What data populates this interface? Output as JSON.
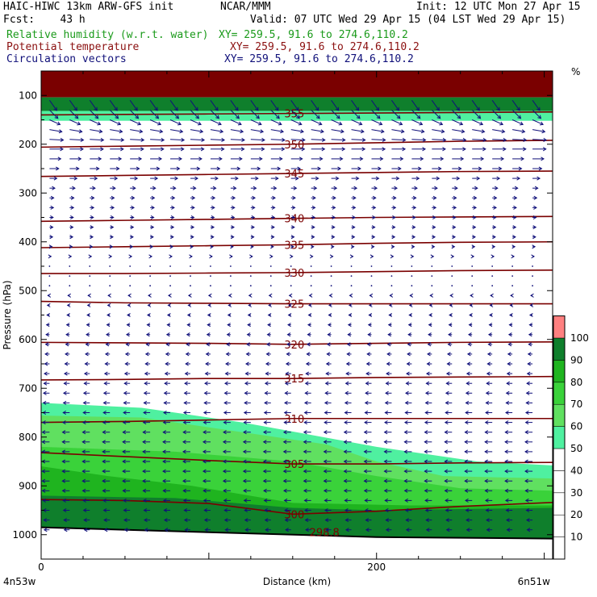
{
  "header": {
    "model": "HAIC-HIWC 13km ARW-GFS init",
    "org": "NCAR/MMM",
    "init": "Init: 12 UTC Mon 27 Apr 15",
    "fcst": "Fcst:    43 h",
    "valid": "Valid: 07 UTC Wed 29 Apr 15 (04 LST Wed 29 Apr 15)"
  },
  "fields": [
    {
      "name": "Relative humidity (w.r.t. water)",
      "xy": "XY= 259.5, 91.6 to 274.6,110.2",
      "color": "#1a9a1a"
    },
    {
      "name": "Potential temperature",
      "xy": "XY= 259.5, 91.6 to 274.6,110.2",
      "color": "#8b1010"
    },
    {
      "name": "Circulation vectors",
      "xy": "XY= 259.5, 91.6 to 274.6,110.2",
      "color": "#10107a"
    }
  ],
  "chart_data": {
    "type": "cross-section",
    "xlabel": "Distance (km)",
    "ylabel": "Pressure (hPa)",
    "x_ticks": [
      "0",
      "200"
    ],
    "x_tick_values": [
      0,
      200
    ],
    "xlim": [
      0,
      305
    ],
    "x_end_labels": [
      "4n53w",
      "6n51w"
    ],
    "y_ticks": [
      "100",
      "200",
      "300",
      "400",
      "500",
      "600",
      "700",
      "800",
      "900",
      "1000"
    ],
    "y_tick_values": [
      100,
      200,
      300,
      400,
      500,
      600,
      700,
      800,
      900,
      1000
    ],
    "ylim": [
      50,
      1050
    ],
    "colorbar": {
      "unit": "%",
      "levels": [
        "10",
        "20",
        "30",
        "40",
        "50",
        "60",
        "70",
        "80",
        "90",
        "100"
      ],
      "colors": [
        "#ffffff",
        "#ffffff",
        "#ffffff",
        "#ffffff",
        "#ffffff",
        "#4ff0a0",
        "#60e060",
        "#3ad23a",
        "#1fb41f",
        "#0f7f2c",
        "#ff8080"
      ]
    },
    "theta_contours": [
      {
        "label": "300",
        "x": [
          0,
          50,
          100,
          150,
          200,
          250,
          305
        ],
        "p": [
          928,
          930,
          936,
          958,
          952,
          942,
          934
        ]
      },
      {
        "label": "305",
        "x": [
          0,
          50,
          100,
          150,
          200,
          250,
          305
        ],
        "p": [
          832,
          840,
          848,
          855,
          855,
          853,
          852
        ]
      },
      {
        "label": "310",
        "x": [
          0,
          50,
          100,
          150,
          200,
          250,
          305
        ],
        "p": [
          770,
          768,
          765,
          762,
          762,
          762,
          762
        ]
      },
      {
        "label": "315",
        "x": [
          0,
          50,
          100,
          150,
          200,
          250,
          305
        ],
        "p": [
          683,
          682,
          680,
          680,
          678,
          677,
          676
        ]
      },
      {
        "label": "320",
        "x": [
          0,
          50,
          100,
          150,
          200,
          250,
          305
        ],
        "p": [
          606,
          607,
          608,
          610,
          608,
          606,
          605
        ]
      },
      {
        "label": "325",
        "x": [
          0,
          50,
          100,
          150,
          200,
          250,
          305
        ],
        "p": [
          522,
          525,
          526,
          527,
          527,
          527,
          527
        ]
      },
      {
        "label": "330",
        "x": [
          0,
          50,
          100,
          150,
          200,
          250,
          305
        ],
        "p": [
          465,
          465,
          464,
          463,
          461,
          459,
          458
        ]
      },
      {
        "label": "335",
        "x": [
          0,
          50,
          100,
          150,
          200,
          250,
          305
        ],
        "p": [
          412,
          410,
          408,
          406,
          403,
          401,
          400
        ]
      },
      {
        "label": "340",
        "x": [
          0,
          50,
          100,
          150,
          200,
          250,
          305
        ],
        "p": [
          358,
          356,
          354,
          352,
          350,
          349,
          348
        ]
      },
      {
        "label": "345",
        "x": [
          0,
          50,
          100,
          150,
          200,
          250,
          305
        ],
        "p": [
          266,
          264,
          262,
          260,
          258,
          256,
          255
        ]
      },
      {
        "label": "350",
        "x": [
          0,
          50,
          100,
          150,
          200,
          250,
          305
        ],
        "p": [
          206,
          204,
          202,
          200,
          197,
          194,
          192
        ]
      },
      {
        "label": "355",
        "x": [
          0,
          50,
          100,
          150,
          200,
          250,
          305
        ],
        "p": [
          140,
          139,
          138,
          137,
          136,
          135,
          134
        ]
      }
    ],
    "extra_labels": [
      {
        "label": "298.8",
        "x": 160,
        "p": 995
      }
    ],
    "vector_color": "#10107a",
    "wind_profile": [
      {
        "p": 120,
        "u": 1.0,
        "w": -1.4
      },
      {
        "p": 160,
        "u": 1.6,
        "w": -0.4
      },
      {
        "p": 200,
        "u": 2.0,
        "w": 0.0
      },
      {
        "p": 240,
        "u": 1.4,
        "w": 0.0
      },
      {
        "p": 300,
        "u": 0.6,
        "w": 0.0
      },
      {
        "p": 400,
        "u": 0.4,
        "w": 0.0
      },
      {
        "p": 500,
        "u": -0.2,
        "w": 0.0
      },
      {
        "p": 600,
        "u": -0.5,
        "w": 0.0
      },
      {
        "p": 700,
        "u": -0.8,
        "w": 0.0
      },
      {
        "p": 800,
        "u": -1.0,
        "w": 0.0
      },
      {
        "p": 900,
        "u": -1.0,
        "w": 0.0
      },
      {
        "p": 1000,
        "u": -0.7,
        "w": 0.0
      }
    ]
  }
}
